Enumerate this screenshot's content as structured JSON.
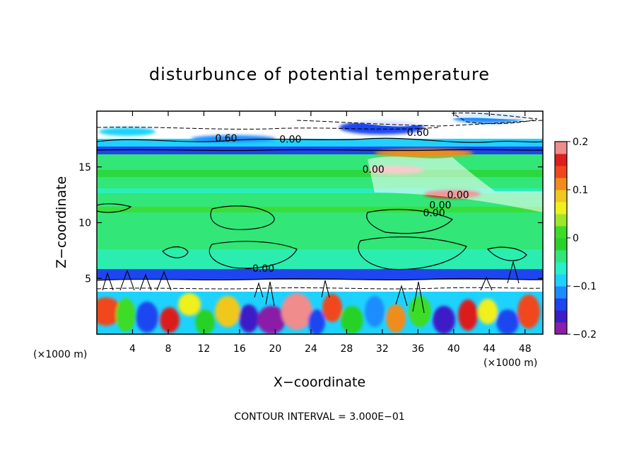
{
  "chart_data": {
    "type": "heatmap",
    "title": "disturbunce of potential temperature",
    "xlabel": "X−coordinate",
    "ylabel": "Z−coordinate",
    "x_unit_left": "(×1000 m)",
    "x_unit_right": "(×1000 m)",
    "note": "CONTOUR INTERVAL = 3.000E−01",
    "xlim": [
      0,
      50
    ],
    "ylim": [
      0,
      20
    ],
    "xticks": [
      {
        "value": 4,
        "label": "4"
      },
      {
        "value": 8,
        "label": "8"
      },
      {
        "value": 12,
        "label": "12"
      },
      {
        "value": 16,
        "label": "16"
      },
      {
        "value": 20,
        "label": "20"
      },
      {
        "value": 24,
        "label": "24"
      },
      {
        "value": 28,
        "label": "28"
      },
      {
        "value": 32,
        "label": "32"
      },
      {
        "value": 36,
        "label": "36"
      },
      {
        "value": 40,
        "label": "40"
      },
      {
        "value": 44,
        "label": "44"
      },
      {
        "value": 48,
        "label": "48"
      }
    ],
    "yticks": [
      {
        "value": 5,
        "label": "5"
      },
      {
        "value": 10,
        "label": "10"
      },
      {
        "value": 15,
        "label": "15"
      }
    ],
    "colorbar": {
      "range": [
        -0.2,
        0.2
      ],
      "ticks": [
        {
          "value": 0.2,
          "label": "0.2"
        },
        {
          "value": 0.1,
          "label": "0.1"
        },
        {
          "value": 0,
          "label": "0"
        },
        {
          "value": -0.1,
          "label": "−0.1"
        },
        {
          "value": -0.2,
          "label": "−0.2"
        }
      ],
      "colors": [
        "#8a1fa8",
        "#3c1ec8",
        "#1e46f0",
        "#1e8cff",
        "#1ed2ff",
        "#28f0c8",
        "#32e678",
        "#28d228",
        "#3cdc28",
        "#a0e628",
        "#f0f01e",
        "#f0c81e",
        "#f08c1e",
        "#f0461e",
        "#dc1e1e",
        "#f08c8c"
      ]
    },
    "contour_labels": [
      {
        "x": 14.5,
        "z": 17.6,
        "label": "0.60"
      },
      {
        "x": 21.7,
        "z": 17.5,
        "label": "0.00"
      },
      {
        "x": 36.0,
        "z": 18.1,
        "label": "0.60"
      },
      {
        "x": 31.0,
        "z": 14.8,
        "label": "0.00"
      },
      {
        "x": 40.5,
        "z": 12.5,
        "label": "0.00"
      },
      {
        "x": 38.5,
        "z": 11.6,
        "label": "0.00"
      },
      {
        "x": 37.8,
        "z": 10.9,
        "label": "0.00"
      },
      {
        "x": 18.2,
        "z": 5.9,
        "label": "−0.00"
      }
    ]
  }
}
